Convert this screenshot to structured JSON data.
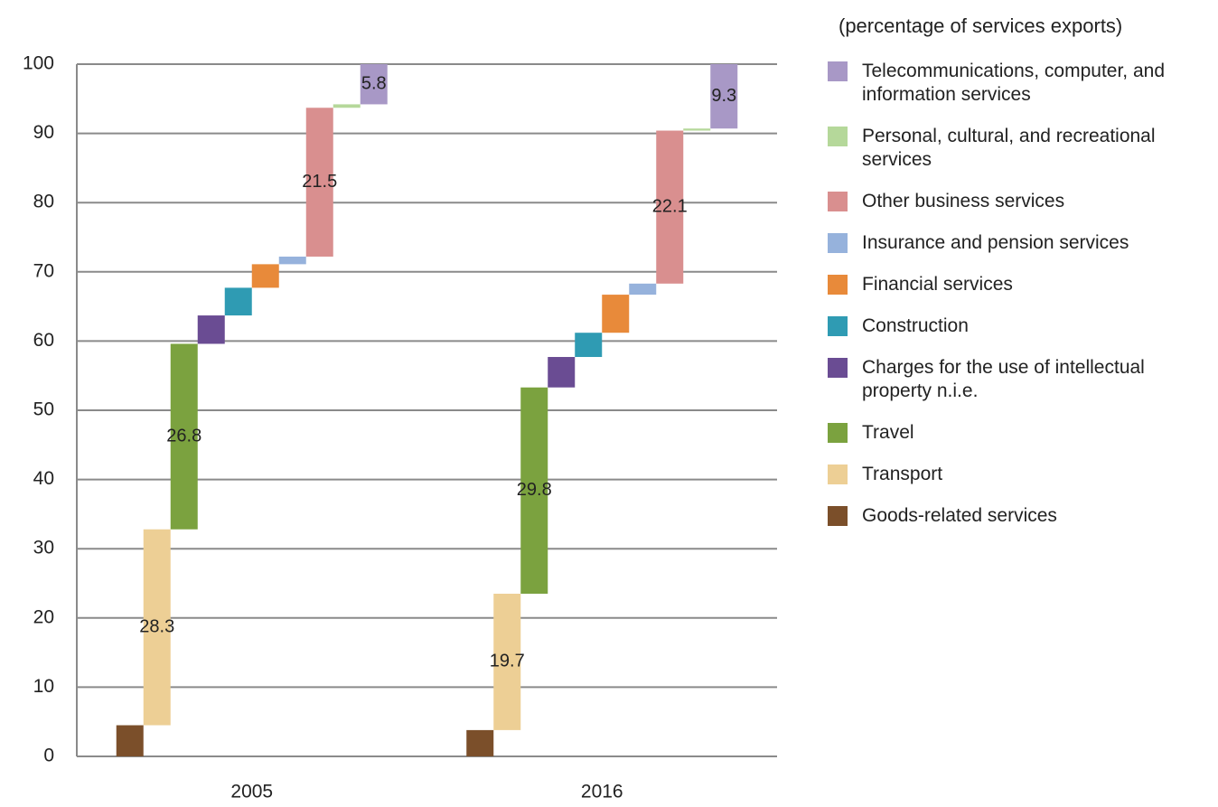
{
  "chart_data": {
    "type": "waterfall",
    "subtitle": "(percentage of services exports)",
    "categories": [
      "2005",
      "2016"
    ],
    "series": [
      {
        "name": "Goods-related services",
        "color": "#7b4f2a",
        "values": [
          4.5,
          3.8
        ]
      },
      {
        "name": "Transport",
        "color": "#edcf95",
        "values": [
          28.3,
          19.7
        ],
        "show_labels": true
      },
      {
        "name": "Travel",
        "color": "#7ba23f",
        "values": [
          26.8,
          29.8
        ],
        "show_labels": true
      },
      {
        "name": "Charges for the use of intellectual property n.i.e.",
        "color": "#6a4c93",
        "values": [
          4.1,
          4.4
        ]
      },
      {
        "name": "Construction",
        "color": "#2f9bb3",
        "values": [
          4.0,
          3.5
        ]
      },
      {
        "name": "Financial services",
        "color": "#e88a3a",
        "values": [
          3.4,
          5.5
        ]
      },
      {
        "name": "Insurance and pension services",
        "color": "#96b2dc",
        "values": [
          1.1,
          1.6
        ]
      },
      {
        "name": "Other business services",
        "color": "#d98f8f",
        "values": [
          21.5,
          22.1
        ],
        "show_labels": true
      },
      {
        "name": "Personal, cultural, and recreational services",
        "color": "#b5d89a",
        "values": [
          0.5,
          0.3
        ]
      },
      {
        "name": "Telecommunications, computer, and information services",
        "color": "#a898c6",
        "values": [
          5.8,
          9.3
        ],
        "show_labels": true
      }
    ],
    "ylim": [
      0,
      100
    ],
    "yticks": [
      0,
      10,
      20,
      30,
      40,
      50,
      60,
      70,
      80,
      90,
      100
    ],
    "grid": true
  }
}
